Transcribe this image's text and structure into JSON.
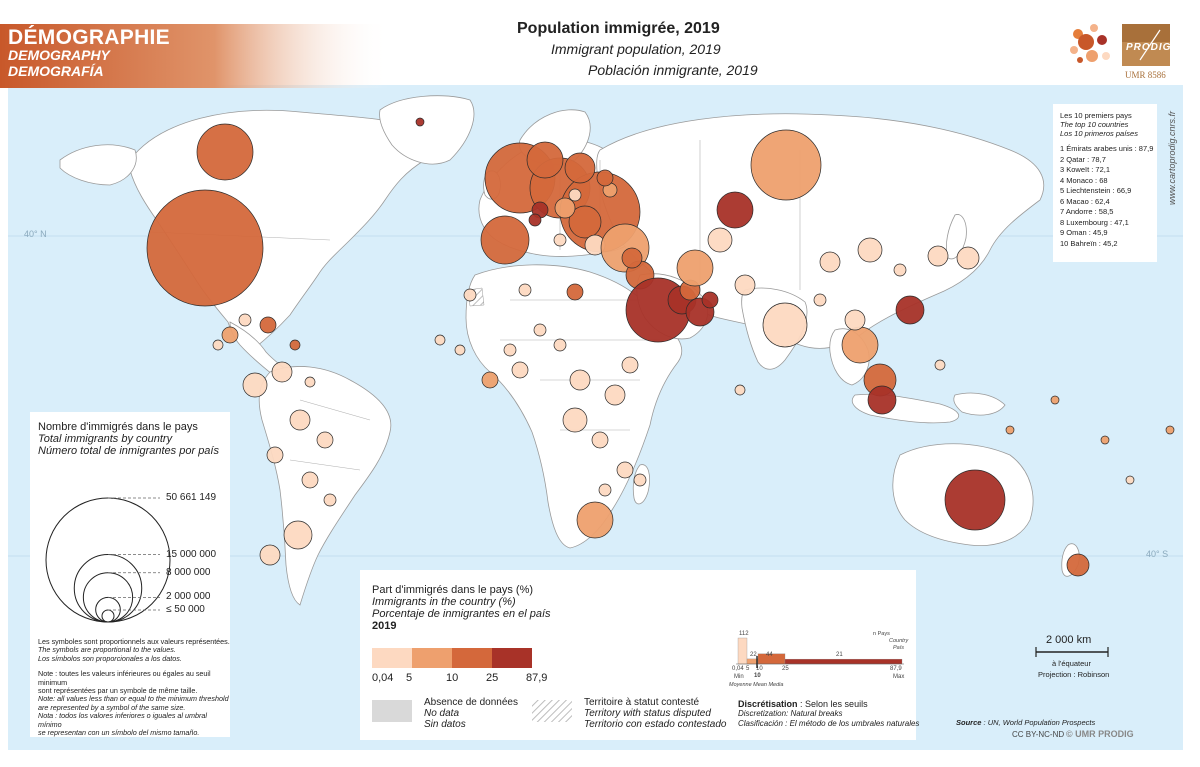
{
  "theme": {
    "fr": "DÉMOGRAPHIE",
    "en": "DEMOGRAPHY",
    "es": "DEMOGRAFÍA"
  },
  "title": {
    "fr": "Population immigrée, 2019",
    "en": "Immigrant population, 2019",
    "es": "Población inmigrante, 2019"
  },
  "logo": {
    "text": "PRODIG",
    "unit": "UMR 8586"
  },
  "website": "www.cartoprodig.cnrs.fr",
  "graticule": {
    "lat40n": "40° N",
    "lat40s": "40° S"
  },
  "top10": {
    "title_fr": "Les 10 premiers pays",
    "title_en": "The top 10 countries",
    "title_es": "Los 10 primeros países",
    "items": [
      "1  Émirats arabes unis : 87,9",
      "2  Qatar : 78,7",
      "3  Koweït : 72,1",
      "4  Monaco : 68",
      "5  Liechtenstein : 66,9",
      "6  Macao : 62,4",
      "7  Andorre : 58,5",
      "8  Luxembourg : 47,1",
      "9  Oman : 45,9",
      "10  Bahreïn : 45,2"
    ]
  },
  "size_legend": {
    "title_fr": "Nombre d'immigrés dans le pays",
    "title_en": "Total immigrants by country",
    "title_es": "Número total de inmigrantes por país",
    "values": [
      {
        "label": "50 661 149",
        "value": 50661149
      },
      {
        "label": "15 000 000",
        "value": 15000000
      },
      {
        "label": "8 000 000",
        "value": 8000000
      },
      {
        "label": "2 000 000",
        "value": 2000000
      },
      {
        "label": "≤ 50 000",
        "value": 50000
      }
    ],
    "note1_fr": "Les symboles sont proportionnels aux valeurs représentées.",
    "note1_en": "The symbols are proportional to the values.",
    "note1_es": "Los símbolos son proporcionales a los datos.",
    "note2_fr_a": "Note : toutes les valeurs inférieures ou égales au seuil minimum",
    "note2_fr_b": "sont représentées par un symbole de même taille.",
    "note2_en_a": "Note: all values less than or equal to the minimum threshold",
    "note2_en_b": "are represented by a symbol of the same size.",
    "note2_es_a": "Nota : todos los valores inferiores o iguales al umbral mínimo",
    "note2_es_b": "se representan con un símbolo del mismo tamaño."
  },
  "color_legend": {
    "title_fr": "Part d'immigrés dans le pays (%)",
    "title_en": "Immigrants in the country (%)",
    "title_es": "Porcentaje de inmigrantes en el país",
    "year": "2019",
    "breaks": [
      "0,04",
      "5",
      "10",
      "25",
      "87,9"
    ],
    "colors": [
      "#fdd9c1",
      "#eea06e",
      "#d4683b",
      "#a83228"
    ],
    "nodata_fr": "Absence de données",
    "nodata_en": "No data",
    "nodata_es": "Sin datos",
    "disputed_fr": "Territoire à statut contesté",
    "disputed_en": "Territory with status disputed",
    "disputed_es": "Territorio con estado contestado"
  },
  "histogram": {
    "counts": [
      112,
      22,
      44,
      21
    ],
    "count_labels": [
      "112",
      "22",
      "44",
      "21"
    ],
    "axis_labels": [
      "0,04",
      "5",
      "10",
      "25",
      "87,9"
    ],
    "min_label": "Min",
    "max_label": "Max",
    "mean_value": "10",
    "mean_label": "Moyenne Mean Media",
    "n_label": "n   Pays",
    "n_en": "Country",
    "n_es": "País"
  },
  "discretisation": {
    "fr_label": "Discrétisation",
    "fr_value": " : Selon les seuils",
    "en": "Discretization: Natural breaks",
    "es": "Clasificación : El método de los umbrales naturales"
  },
  "scale": {
    "label": "2 000 km",
    "at_equator": "à l'équateur",
    "projection": "Projection : Robinson"
  },
  "source": {
    "label": "Source",
    "text": " : UN, World Population Prospects"
  },
  "credits": {
    "license": "CC BY-NC-ND",
    "copyright": "© UMR PRODIG"
  }
}
